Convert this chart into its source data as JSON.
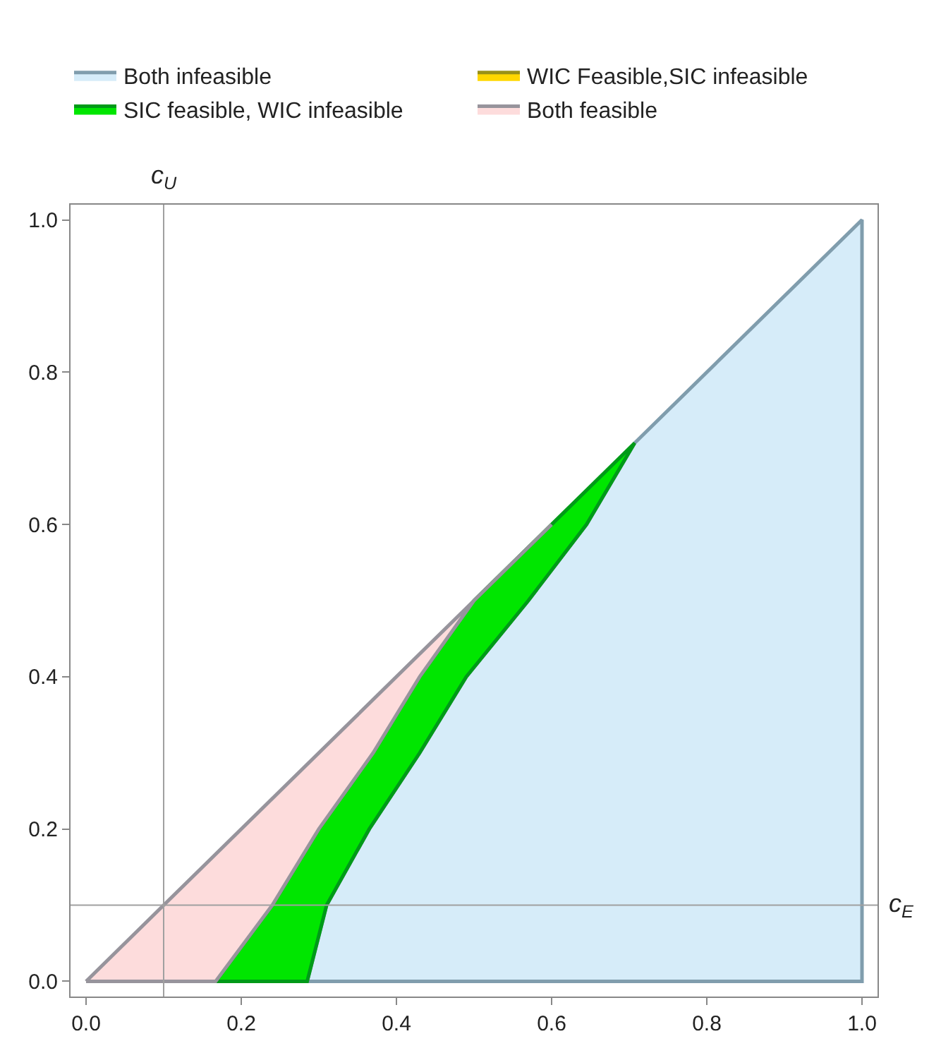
{
  "chart_data": {
    "type": "area",
    "series": [
      {
        "name": "Both infeasible",
        "color": "#d6ecf9",
        "x": [
          0.285,
          1,
          1,
          0.707,
          0.645,
          0.57,
          0.49,
          0.43,
          0.365,
          0.31,
          0.285
        ],
        "values": [
          0,
          0,
          1,
          0.707,
          0.6,
          0.5,
          0.4,
          0.3,
          0.2,
          0.1,
          0
        ]
      },
      {
        "name": "WIC Feasible,SIC infeasible",
        "color": "#ffd700"
      },
      {
        "name": "SIC feasible, WIC infeasible",
        "color": "#00e600",
        "x": [
          0.167,
          0.24,
          0.3,
          0.37,
          0.43,
          0.5,
          0.6,
          0.707,
          0.645,
          0.57,
          0.49,
          0.43,
          0.365,
          0.31,
          0.285,
          0.167
        ],
        "values": [
          0,
          0.1,
          0.2,
          0.3,
          0.4,
          0.5,
          0.6,
          0.707,
          0.6,
          0.5,
          0.4,
          0.3,
          0.2,
          0.1,
          0,
          0
        ]
      },
      {
        "name": "Both feasible",
        "color": "#fddcdc",
        "x": [
          0,
          0.6,
          0.5,
          0.43,
          0.37,
          0.3,
          0.24,
          0.167,
          0
        ],
        "values": [
          0,
          0.6,
          0.5,
          0.4,
          0.3,
          0.2,
          0.1,
          0,
          0
        ]
      }
    ],
    "xlim": [
      -0.02,
      1.02
    ],
    "ylim": [
      -0.02,
      1.02
    ],
    "xticks": [
      {
        "value": 0,
        "label": "0.0"
      },
      0.2,
      0.4,
      0.6,
      0.8,
      {
        "value": 1,
        "label": "1.0"
      }
    ],
    "yticks": [
      {
        "value": 0,
        "label": "0.0"
      },
      0.2,
      0.4,
      0.6,
      0.8,
      {
        "value": 1,
        "label": "1.0"
      }
    ],
    "ref_lines": [
      {
        "axis": "x",
        "value": 0.1,
        "label": "c$_{U}$",
        "color": "#a0a0a0"
      },
      {
        "axis": "y",
        "value": 0.1,
        "label": "c$_{E}$",
        "color": "#a0a0a0"
      }
    ],
    "legend": "top"
  }
}
